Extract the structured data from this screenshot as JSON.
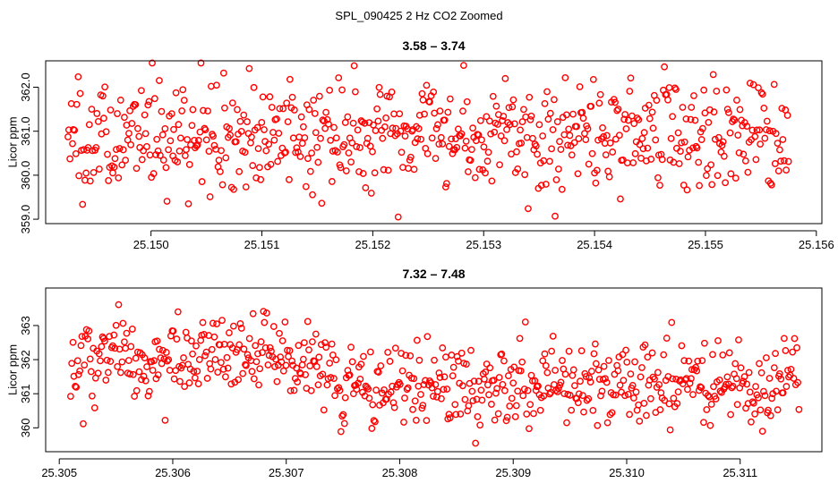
{
  "figure_title": "SPL_090425  2 Hz CO2 Zoomed",
  "colors": {
    "points": "#ff0000",
    "axes": "#000000",
    "background": "#ffffff"
  },
  "chart_data": [
    {
      "type": "scatter",
      "title": "3.58 – 3.74",
      "xlabel": "",
      "ylabel": "Licor ppm",
      "xlim": [
        25.14905,
        25.15605
      ],
      "ylim": [
        358.9,
        362.6
      ],
      "xticks": [
        25.15,
        25.151,
        25.152,
        25.153,
        25.154,
        25.155,
        25.156
      ],
      "xtick_labels": [
        "25.150",
        "25.151",
        "25.152",
        "25.153",
        "25.154",
        "25.155",
        "25.156"
      ],
      "yticks": [
        359.0,
        360.0,
        361.0,
        362.0
      ],
      "ytick_labels": [
        "359.0",
        "360.0",
        "361.0",
        "362.0"
      ],
      "grid": false,
      "n_points": 640,
      "x_range": [
        25.14925,
        25.15575
      ],
      "y_level": 360.9,
      "y_spread": 0.65,
      "y_min": 359.05,
      "y_max": 362.55,
      "seed": 1357
    },
    {
      "type": "scatter",
      "title": "7.32 – 7.48",
      "xlabel": "",
      "ylabel": "Licor ppm",
      "xlim": [
        25.30488,
        25.31172
      ],
      "ylim": [
        359.3,
        364.1
      ],
      "xticks": [
        25.305,
        25.306,
        25.307,
        25.308,
        25.309,
        25.31,
        25.311
      ],
      "xtick_labels": [
        "25.305",
        "25.306",
        "25.307",
        "25.308",
        "25.309",
        "25.310",
        "25.311"
      ],
      "yticks": [
        360,
        361,
        362,
        363
      ],
      "ytick_labels": [
        "360",
        "361",
        "362",
        "363"
      ],
      "grid": false,
      "n_points": 640,
      "x_range": [
        25.3051,
        25.31152
      ],
      "level_steps": [
        {
          "x_to": 25.3074,
          "y": 362.05
        },
        {
          "x_to": 25.31152,
          "y": 361.25
        }
      ],
      "y_spread": 0.62,
      "y_min": 359.55,
      "y_max": 363.85,
      "seed": 2468
    }
  ]
}
